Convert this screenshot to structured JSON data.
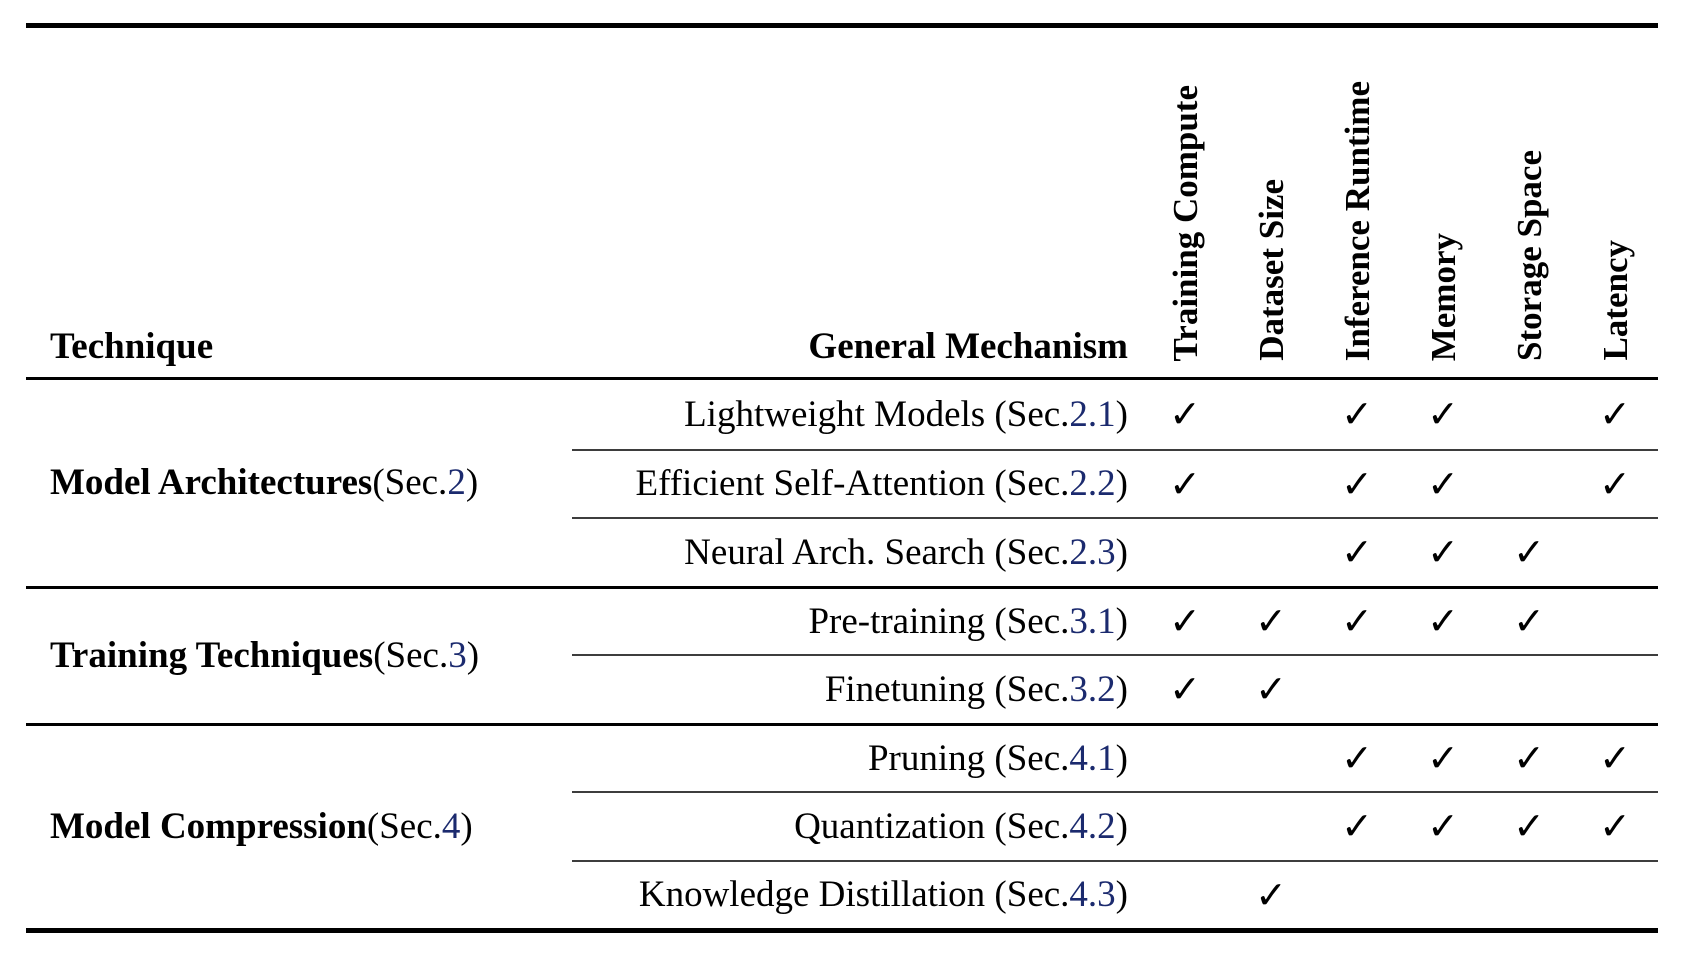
{
  "colors": {
    "text": "#000000",
    "link": "#1b2a6e",
    "rule_heavy": "#000000",
    "rule_light": "#3d3d3d",
    "background": "#ffffff"
  },
  "table": {
    "header": {
      "technique": "Technique",
      "mechanism": "General Mechanism",
      "criteria": [
        "Training Compute",
        "Dataset Size",
        "Inference Runtime",
        "Memory",
        "Storage Space",
        "Latency"
      ]
    },
    "check_glyph": "✓",
    "groups": [
      {
        "name": "Model Architectures",
        "paren_prefix": " (Sec. ",
        "sec": "2",
        "paren_suffix": ")",
        "rows": [
          {
            "prefix": "Lightweight Models (Sec. ",
            "sec": "2.1",
            "suffix": ")",
            "checks": [
              "✓",
              "",
              "✓",
              "✓",
              "",
              "✓"
            ]
          },
          {
            "prefix": "Efficient Self-Attention (Sec. ",
            "sec": "2.2",
            "suffix": ")",
            "checks": [
              "✓",
              "",
              "✓",
              "✓",
              "",
              "✓"
            ]
          },
          {
            "prefix": "Neural Arch. Search (Sec. ",
            "sec": "2.3",
            "suffix": ")",
            "checks": [
              "",
              "",
              "✓",
              "✓",
              "✓",
              ""
            ]
          }
        ]
      },
      {
        "name": "Training Techniques",
        "paren_prefix": " (Sec. ",
        "sec": "3",
        "paren_suffix": ")",
        "rows": [
          {
            "prefix": "Pre-training (Sec. ",
            "sec": "3.1",
            "suffix": ")",
            "checks": [
              "✓",
              "✓",
              "✓",
              "✓",
              "✓",
              ""
            ]
          },
          {
            "prefix": "Finetuning (Sec. ",
            "sec": "3.2",
            "suffix": ")",
            "checks": [
              "✓",
              "✓",
              "",
              "",
              "",
              ""
            ]
          }
        ]
      },
      {
        "name": "Model Compression",
        "paren_prefix": " (Sec. ",
        "sec": "4",
        "paren_suffix": ")",
        "rows": [
          {
            "prefix": "Pruning (Sec. ",
            "sec": "4.1",
            "suffix": ")",
            "checks": [
              "",
              "",
              "✓",
              "✓",
              "✓",
              "✓"
            ]
          },
          {
            "prefix": "Quantization (Sec. ",
            "sec": "4.2",
            "suffix": ")",
            "checks": [
              "",
              "",
              "✓",
              "✓",
              "✓",
              "✓"
            ]
          },
          {
            "prefix": "Knowledge Distillation (Sec. ",
            "sec": "4.3",
            "suffix": ")",
            "checks": [
              "",
              "✓",
              "",
              "",
              "",
              ""
            ]
          }
        ]
      }
    ]
  }
}
